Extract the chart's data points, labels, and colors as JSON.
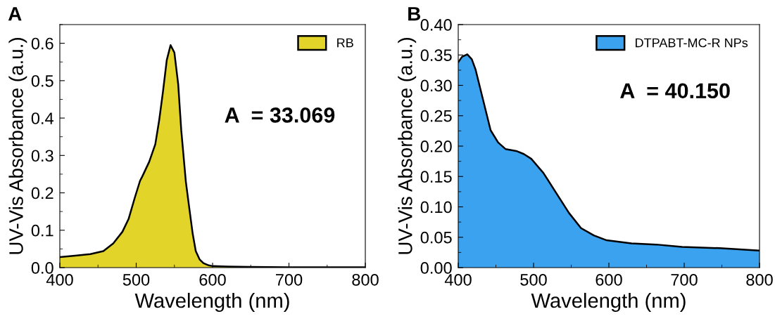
{
  "chart_data": [
    {
      "type": "area",
      "title": "A",
      "xlabel": "Wavelength (nm)",
      "ylabel": "UV-Vis Absorbance (a.u.)",
      "x": [
        400,
        420,
        440,
        457,
        470,
        482,
        490,
        498,
        505,
        508,
        517,
        525,
        530,
        535,
        540,
        545,
        550,
        555,
        559,
        565,
        569,
        574,
        578,
        583,
        588,
        595,
        600,
        620,
        650,
        700,
        750,
        800
      ],
      "series": [
        {
          "name": "RB",
          "color": "#e2d428",
          "values": [
            0.028,
            0.032,
            0.036,
            0.044,
            0.065,
            0.096,
            0.13,
            0.186,
            0.232,
            0.244,
            0.283,
            0.33,
            0.393,
            0.47,
            0.555,
            0.595,
            0.575,
            0.49,
            0.367,
            0.23,
            0.167,
            0.09,
            0.044,
            0.022,
            0.012,
            0.006,
            0.004,
            0.003,
            0.002,
            0.001,
            0.001,
            0.001
          ]
        }
      ],
      "xlim": [
        400,
        800
      ],
      "xticks": [
        400,
        500,
        600,
        700,
        800
      ],
      "ylim": [
        0,
        0.65
      ],
      "yticks": [
        {
          "value": 0,
          "label": "0.0"
        },
        0.1,
        0.2,
        0.3,
        0.4,
        0.5,
        0.6
      ],
      "legend": "top right",
      "annotations": [
        "A  = 33.069"
      ]
    },
    {
      "type": "area",
      "title": "B",
      "xlabel": "Wavelength (nm)",
      "ylabel": "UV-Vis Absorbance (a.u.)",
      "x": [
        400,
        405,
        412,
        418,
        423,
        433,
        443,
        453,
        463,
        477,
        487,
        497,
        513,
        530,
        547,
        563,
        580,
        597,
        630,
        663,
        697,
        747,
        800
      ],
      "series": [
        {
          "name": "DTPABT-MC-R NPs",
          "color": "#3aa2ee",
          "values": [
            0.338,
            0.347,
            0.351,
            0.343,
            0.326,
            0.276,
            0.226,
            0.206,
            0.195,
            0.192,
            0.187,
            0.179,
            0.156,
            0.123,
            0.09,
            0.065,
            0.053,
            0.045,
            0.04,
            0.038,
            0.034,
            0.032,
            0.028
          ]
        }
      ],
      "xlim": [
        400,
        800
      ],
      "xticks": [
        400,
        500,
        600,
        700,
        800
      ],
      "ylim": [
        0,
        0.4
      ],
      "yticks": [
        {
          "value": 0,
          "label": "0.00"
        },
        0.05,
        {
          "value": 0.1,
          "label": "0.10"
        },
        0.15,
        {
          "value": 0.2,
          "label": "0.20"
        },
        0.25,
        {
          "value": 0.3,
          "label": "0.30"
        },
        0.35,
        {
          "value": 0.4,
          "label": "0.40"
        }
      ],
      "legend": "top right",
      "annotations": [
        "A  = 40.150"
      ]
    }
  ]
}
